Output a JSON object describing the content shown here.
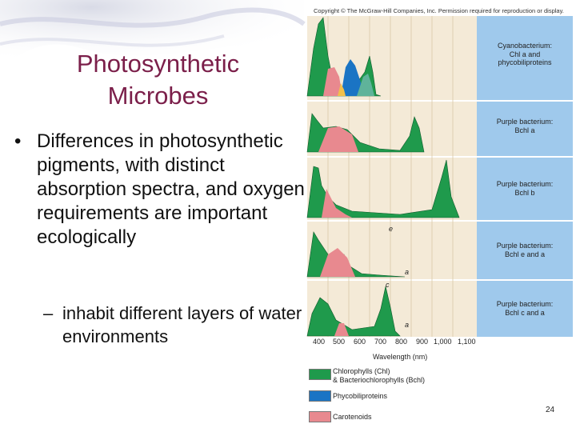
{
  "slide": {
    "title_line1": "Photosynthetic",
    "title_line2": "Microbes",
    "bullet_mark": "•",
    "bullet_text": "Differences in photosynthetic pigments, with distinct absorption spectra, and oxygen requirements are important ecologically",
    "sub_mark": "–",
    "sub_text": "inhabit different layers of water environments",
    "page_number": "24"
  },
  "figure": {
    "copyright": "Copyright © The McGraw-Hill Companies, Inc. Permission required for reproduction or display.",
    "panels": [
      {
        "label_line1": "Cyanobacterium:",
        "label_line2": "Chl a and",
        "label_line3": "phycobiliproteins"
      },
      {
        "label_line1": "Purple bacterium:",
        "label_line2": "Bchl a"
      },
      {
        "label_line1": "Purple bacterium:",
        "label_line2": "Bchl b"
      },
      {
        "label_line1": "Purple bacterium:",
        "label_line2": "Bchl e and a"
      },
      {
        "label_line1": "Purple bacterium:",
        "label_line2": "Bchl c and a"
      }
    ],
    "letters": [
      "e",
      "a",
      "c",
      "a"
    ],
    "x_ticks": [
      "400",
      "500",
      "600",
      "700",
      "800",
      "900",
      "1,000",
      "1,100"
    ],
    "x_axis_title": "Wavelength (nm)",
    "legend": [
      {
        "line1": "Chlorophylls (Chl)",
        "line2": "& Bacteriochlorophylls (Bchl)",
        "color": "#1f9a4c"
      },
      {
        "line1": "Phycobiliproteins",
        "line2": "",
        "color": "#1a74c4"
      },
      {
        "line1": "Carotenoids",
        "line2": "",
        "color": "#e8898f"
      }
    ],
    "colors": {
      "green": "#1f9a4c",
      "blue": "#1a74c4",
      "pink": "#e8898f",
      "panel_bg": "#f4ead7",
      "label_bg": "#9fc9ec"
    }
  }
}
